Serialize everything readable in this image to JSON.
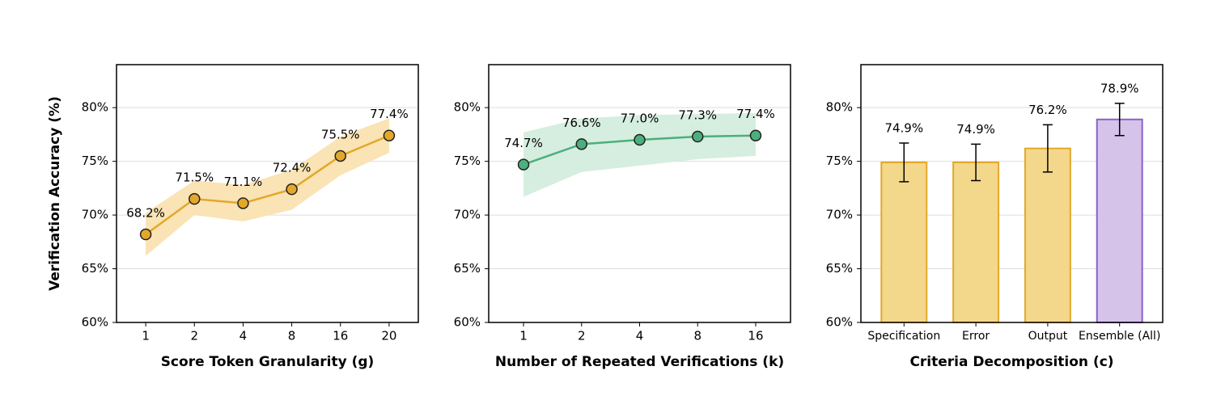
{
  "chart_data": [
    {
      "type": "line",
      "xlabel": "Score Token Granularity (g)",
      "ylabel": "Verification Accuracy (%)",
      "categories": [
        "1",
        "2",
        "4",
        "8",
        "16",
        "20"
      ],
      "values": [
        68.2,
        71.5,
        71.1,
        72.4,
        75.5,
        77.4
      ],
      "value_labels": [
        "68.2%",
        "71.5%",
        "71.1%",
        "72.4%",
        "75.5%",
        "77.4%"
      ],
      "band_lower": [
        66.2,
        70.0,
        69.4,
        70.5,
        73.7,
        75.8
      ],
      "band_upper": [
        70.2,
        73.2,
        72.8,
        74.2,
        77.3,
        79.0
      ],
      "color": "#e3a82b",
      "band_color": "#fae3b4",
      "ylim": [
        60,
        84
      ],
      "yticks": [
        {
          "value": 60,
          "label": "60%"
        },
        {
          "value": 65,
          "label": "65%"
        },
        {
          "value": 70,
          "label": "70%"
        },
        {
          "value": 75,
          "label": "75%"
        },
        {
          "value": 80,
          "label": "80%"
        }
      ],
      "grid": true
    },
    {
      "type": "line",
      "xlabel": "Number of Repeated Verifications (k)",
      "categories": [
        "1",
        "2",
        "4",
        "8",
        "16"
      ],
      "values": [
        74.7,
        76.6,
        77.0,
        77.3,
        77.4
      ],
      "value_labels": [
        "74.7%",
        "76.6%",
        "77.0%",
        "77.3%",
        "77.4%"
      ],
      "band_lower": [
        71.7,
        74.0,
        74.6,
        75.2,
        75.5
      ],
      "band_upper": [
        77.7,
        79.0,
        79.3,
        79.4,
        79.5
      ],
      "color": "#4caf7d",
      "band_color": "#d6eedf",
      "ylim": [
        60,
        84
      ],
      "yticks": [
        {
          "value": 60,
          "label": "60%"
        },
        {
          "value": 65,
          "label": "65%"
        },
        {
          "value": 70,
          "label": "70%"
        },
        {
          "value": 75,
          "label": "75%"
        },
        {
          "value": 80,
          "label": "80%"
        }
      ],
      "grid": true
    },
    {
      "type": "bar",
      "xlabel": "Criteria Decomposition (c)",
      "categories": [
        "Specification",
        "Error",
        "Output",
        "Ensemble (All)"
      ],
      "values": [
        74.9,
        74.9,
        76.2,
        78.9
      ],
      "value_labels": [
        "74.9%",
        "74.9%",
        "76.2%",
        "78.9%"
      ],
      "errors": [
        1.8,
        1.7,
        2.2,
        1.5
      ],
      "colors": [
        "#f3d78a",
        "#f3d78a",
        "#f3d78a",
        "#d5c3ea"
      ],
      "edge_colors": [
        "#e3a82b",
        "#e3a82b",
        "#e3a82b",
        "#8a62c9"
      ],
      "ylim": [
        60,
        84
      ],
      "yticks": [
        {
          "value": 60,
          "label": "60%"
        },
        {
          "value": 65,
          "label": "65%"
        },
        {
          "value": 70,
          "label": "70%"
        },
        {
          "value": 75,
          "label": "75%"
        },
        {
          "value": 80,
          "label": "80%"
        }
      ],
      "grid": true
    }
  ]
}
